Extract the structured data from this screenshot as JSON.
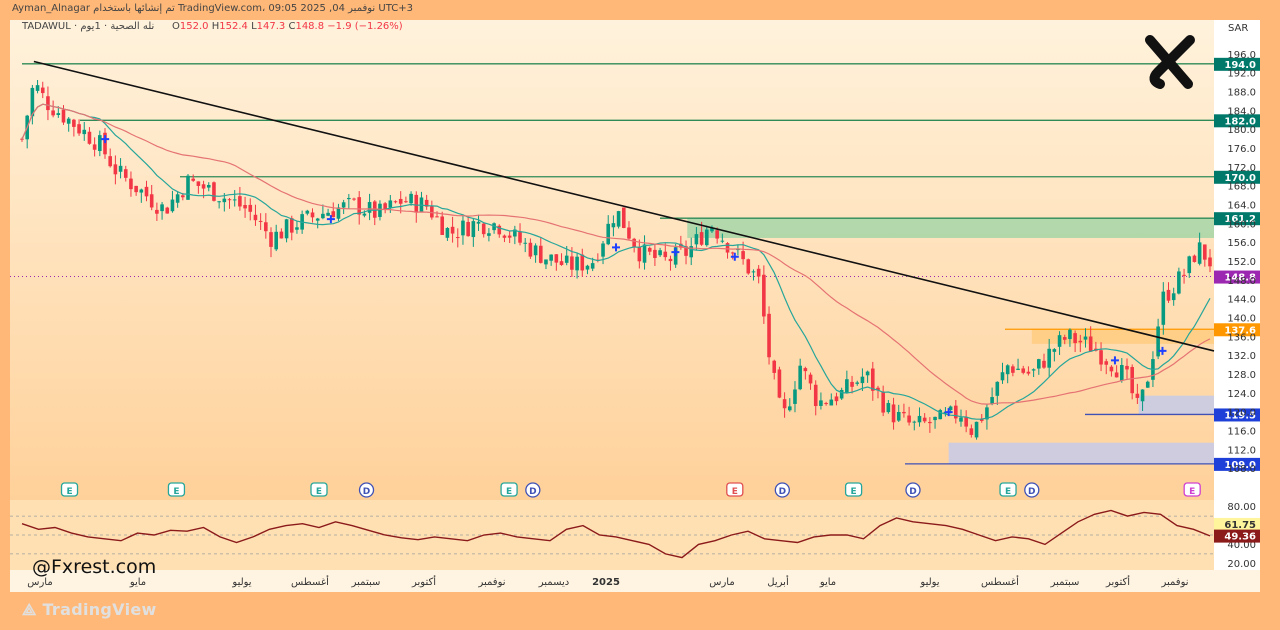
{
  "header": {
    "publisher_line": "Ayman_Alnagar تم إنشائها باستخدام TradingView.com، 09:05 2025 ,04 نوفمبر UTC+3",
    "symbol_line": "TADAWUL · نله الصحية · 1يوم",
    "ohlc": {
      "open_label": "O",
      "open": "152.0",
      "high_label": "H",
      "high": "152.4",
      "low_label": "L",
      "low": "147.3",
      "close_label": "C",
      "close": "148.8",
      "change": "−1.9 (−1.26%)"
    },
    "currency": "SAR"
  },
  "watermark": "@Fxrest.com",
  "footer_logo": "TradingView",
  "colors": {
    "background": "#ffb878",
    "panel_top": "#fff0d9",
    "panel_bottom": "#ffd6a3",
    "up_candle": "#089981",
    "down_candle": "#f23645",
    "fast_ma": "#26a69a",
    "slow_ma": "#e57373",
    "trendline": "#111111",
    "resistance_line": "#2e8b57",
    "support_line": "#3f51b5",
    "orange_zone": "#ff9800",
    "rsi_line": "#8b1a1a",
    "last_price": "#9c27b0"
  },
  "chart_data": [
    {
      "type": "candlestick",
      "title": "",
      "xlabel": "",
      "ylabel": "",
      "ylim": [
        106.0,
        198.0
      ],
      "grid": false,
      "x_tick_labels": [
        "مارس",
        "مايو",
        "يوليو",
        "أغسطس",
        "سبتمبر",
        "أكتوبر",
        "نوفمبر",
        "ديسمبر",
        "2025",
        "مارس",
        "أبريل",
        "مايو",
        "يوليو",
        "أغسطس",
        "سبتمبر",
        "أكتوبر",
        "نوفمبر"
      ],
      "y_tick_labels": [
        "196.0",
        "192.0",
        "188.0",
        "184.0",
        "180.0",
        "176.0",
        "172.0",
        "168.0",
        "164.0",
        "160.0",
        "156.0",
        "152.0",
        "148.0",
        "144.0",
        "140.0",
        "136.0",
        "132.0",
        "128.0",
        "124.0",
        "120.0",
        "116.0",
        "112.0",
        "108.0"
      ],
      "price_path": [
        [
          0.0,
          178
        ],
        [
          0.01,
          190
        ],
        [
          0.02,
          186
        ],
        [
          0.035,
          183
        ],
        [
          0.05,
          180
        ],
        [
          0.065,
          177
        ],
        [
          0.08,
          171
        ],
        [
          0.1,
          167
        ],
        [
          0.12,
          163
        ],
        [
          0.14,
          169
        ],
        [
          0.16,
          167
        ],
        [
          0.19,
          163
        ],
        [
          0.21,
          157
        ],
        [
          0.23,
          160
        ],
        [
          0.26,
          163
        ],
        [
          0.28,
          164
        ],
        [
          0.3,
          162
        ],
        [
          0.32,
          165
        ],
        [
          0.34,
          164
        ],
        [
          0.36,
          158
        ],
        [
          0.38,
          160
        ],
        [
          0.4,
          160
        ],
        [
          0.42,
          156
        ],
        [
          0.44,
          153
        ],
        [
          0.46,
          151
        ],
        [
          0.48,
          152
        ],
        [
          0.5,
          163
        ],
        [
          0.52,
          154
        ],
        [
          0.54,
          152
        ],
        [
          0.56,
          154
        ],
        [
          0.58,
          160
        ],
        [
          0.6,
          154
        ],
        [
          0.62,
          148
        ],
        [
          0.63,
          130
        ],
        [
          0.64,
          118
        ],
        [
          0.655,
          130
        ],
        [
          0.67,
          122
        ],
        [
          0.69,
          124
        ],
        [
          0.71,
          128
        ],
        [
          0.73,
          120
        ],
        [
          0.75,
          117
        ],
        [
          0.77,
          118
        ],
        [
          0.79,
          120
        ],
        [
          0.8,
          116
        ],
        [
          0.81,
          120
        ],
        [
          0.83,
          130
        ],
        [
          0.85,
          128
        ],
        [
          0.87,
          134
        ],
        [
          0.88,
          136
        ],
        [
          0.9,
          134
        ],
        [
          0.92,
          130
        ],
        [
          0.93,
          127
        ],
        [
          0.94,
          120
        ],
        [
          0.95,
          130
        ],
        [
          0.96,
          144
        ],
        [
          0.98,
          150
        ],
        [
          0.99,
          155
        ],
        [
          1.0,
          152
        ]
      ],
      "moving_averages": [
        {
          "name": "",
          "color": "#26a69a"
        },
        {
          "name": "",
          "color": "#e57373"
        }
      ],
      "horizontal_levels": [
        {
          "price": 194.0,
          "label": "194.0",
          "kind": "resistance"
        },
        {
          "price": 182.0,
          "label": "182.0",
          "kind": "resistance"
        },
        {
          "price": 170.0,
          "label": "170.0",
          "kind": "resistance"
        },
        {
          "price": 161.2,
          "label": "161.2",
          "kind": "supply-zone"
        },
        {
          "price": 148.8,
          "label": "148.8",
          "kind": "last-price"
        },
        {
          "price": 137.6,
          "label": "137.6",
          "kind": "orange-zone"
        },
        {
          "price": 119.5,
          "label": "119.5",
          "kind": "support"
        },
        {
          "price": 109.0,
          "label": "109.0",
          "kind": "support"
        }
      ],
      "zones": [
        {
          "from": 157.0,
          "to": 161.2,
          "color": "#a5d6a7",
          "start": 0.56
        },
        {
          "from": 134.5,
          "to": 137.6,
          "color": "#ffcc80",
          "start": 0.85
        },
        {
          "from": 119.5,
          "to": 123.5,
          "color": "#c5cae9",
          "start": 0.94
        },
        {
          "from": 109.0,
          "to": 113.5,
          "color": "#c5cae9",
          "start": 0.78
        }
      ],
      "trendline": {
        "from": [
          0.01,
          194.5
        ],
        "to": [
          1.0,
          133.0
        ]
      },
      "event_markers": [
        {
          "label": "E",
          "t": 0.04
        },
        {
          "label": "E",
          "t": 0.13
        },
        {
          "label": "E",
          "t": 0.25
        },
        {
          "label": "D",
          "t": 0.29
        },
        {
          "label": "E",
          "t": 0.41
        },
        {
          "label": "D",
          "t": 0.43
        },
        {
          "label": "E",
          "t": 0.6
        },
        {
          "label": "D",
          "t": 0.64
        },
        {
          "label": "E",
          "t": 0.7
        },
        {
          "label": "D",
          "t": 0.75
        },
        {
          "label": "E",
          "t": 0.83
        },
        {
          "label": "D",
          "t": 0.85
        },
        {
          "label": "E",
          "t": 0.985
        }
      ]
    },
    {
      "type": "line",
      "title": "",
      "ylim": [
        15,
        85
      ],
      "y_tick_labels": [
        "80.00",
        "40.00",
        "20.00"
      ],
      "current_values": [
        "61.75",
        "49.36"
      ],
      "series": [
        {
          "name": "",
          "values": [
            62,
            56,
            58,
            52,
            48,
            46,
            44,
            52,
            50,
            55,
            54,
            58,
            48,
            42,
            48,
            56,
            60,
            62,
            58,
            64,
            60,
            55,
            50,
            47,
            45,
            48,
            46,
            44,
            50,
            52,
            48,
            46,
            44,
            56,
            60,
            50,
            48,
            44,
            40,
            30,
            26,
            40,
            44,
            50,
            54,
            46,
            44,
            42,
            48,
            50,
            50,
            46,
            60,
            68,
            64,
            62,
            60,
            56,
            50,
            44,
            48,
            46,
            40,
            52,
            64,
            72,
            76,
            70,
            74,
            72,
            60,
            56,
            49
          ]
        }
      ]
    }
  ]
}
